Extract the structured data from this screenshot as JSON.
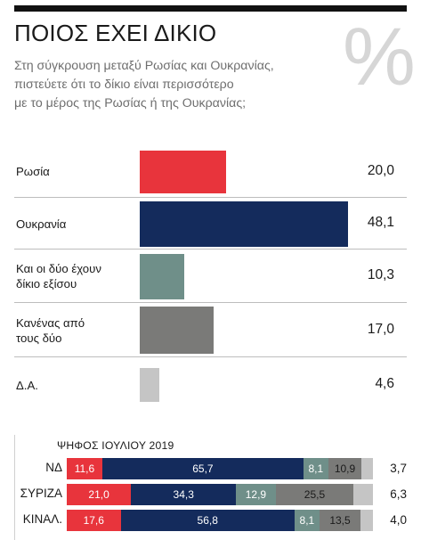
{
  "header": {
    "title": "ΠΟΙΟΣ ΕΧΕΙ ΔΙΚΙΟ",
    "percent_symbol": "%",
    "subtitle_lines": [
      "Στη σύγκρουση μεταξύ Ρωσίας και Ουκρανίας,",
      "πιστεύετε ότι το δίκιο είναι περισσότερο",
      "με το μέρος της Ρωσίας ή της Ουκρανίας;"
    ]
  },
  "chart_data": [
    {
      "type": "bar",
      "orientation": "horizontal",
      "categories": [
        [
          "Ρωσία"
        ],
        [
          "Ουκρανία"
        ],
        [
          "Και οι δύο έχουν",
          "δίκιο εξίσου"
        ],
        [
          "Κανένας από",
          "τους δύο"
        ],
        [
          "Δ.Α."
        ]
      ],
      "values": [
        20.0,
        48.1,
        10.3,
        17.0,
        4.6
      ],
      "value_labels": [
        "20,0",
        "48,1",
        "10,3",
        "17,0",
        "4,6"
      ],
      "colors": [
        "#e8343c",
        "#142b5c",
        "#6f8f89",
        "#7a7a78",
        "#c5c5c5"
      ],
      "xlim": [
        0,
        50
      ]
    },
    {
      "type": "bar",
      "stacked": true,
      "orientation": "horizontal",
      "title": "ΨΗΦΟΣ ΙΟΥΛΙΟΥ 2019",
      "categories": [
        "ΝΔ",
        "ΣΥΡΙΖΑ",
        "ΚΙΝΑΛ."
      ],
      "series": [
        {
          "color": "#e8343c",
          "values": [
            11.6,
            21.0,
            17.6
          ],
          "labels": [
            "11,6",
            "21,0",
            "17,6"
          ]
        },
        {
          "color": "#142b5c",
          "values": [
            65.7,
            34.3,
            56.8
          ],
          "labels": [
            "65,7",
            "34,3",
            "56,8"
          ]
        },
        {
          "color": "#6f8f89",
          "values": [
            8.1,
            12.9,
            8.1
          ],
          "labels": [
            "8,1",
            "12,9",
            "8,1"
          ]
        },
        {
          "color": "#7a7a78",
          "values": [
            10.9,
            25.5,
            13.5
          ],
          "labels": [
            "10,9",
            "25,5",
            "13,5"
          ]
        },
        {
          "color": "#c5c5c5",
          "values": [
            3.7,
            6.3,
            4.0
          ],
          "labels": [
            "3,7",
            "6,3",
            "4,0"
          ]
        }
      ]
    }
  ]
}
